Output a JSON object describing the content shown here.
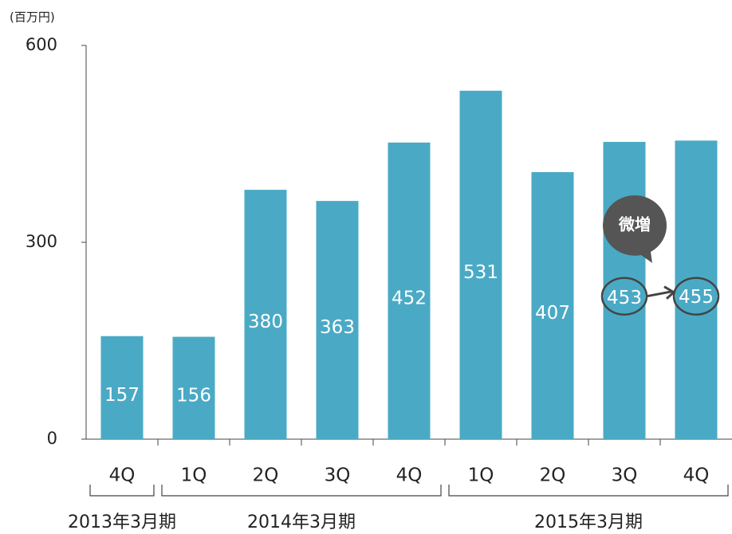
{
  "chart_data": {
    "type": "bar",
    "unit_label": "(百万円)",
    "categories": [
      "4Q",
      "1Q",
      "2Q",
      "3Q",
      "4Q",
      "1Q",
      "2Q",
      "3Q",
      "4Q"
    ],
    "values": [
      157,
      156,
      380,
      363,
      452,
      531,
      407,
      453,
      455
    ],
    "groups": [
      {
        "label": "2013年3月期",
        "span": 1
      },
      {
        "label": "2014年3月期",
        "span": 4
      },
      {
        "label": "2015年3月期",
        "span": 4
      }
    ],
    "color": "#4aaac5",
    "ylim": [
      0,
      600
    ],
    "yticks": [
      0,
      300,
      600
    ],
    "grid": false,
    "annotation": "微増"
  }
}
